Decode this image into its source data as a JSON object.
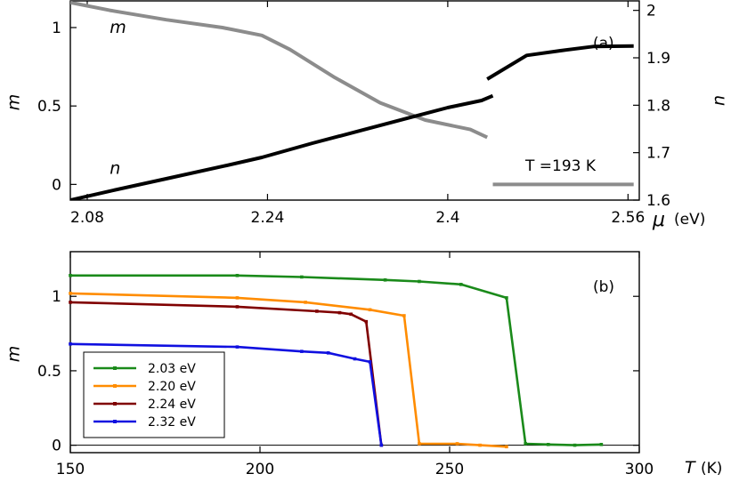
{
  "chart_data": [
    {
      "type": "line",
      "panel_label": "(a)",
      "annotation": "T =193 K",
      "xlabel": "μ (eV)",
      "xlabel_symbol": "μ",
      "xlabel_unit": "(eV)",
      "ylabel_left": "m",
      "ylabel_right": "n",
      "xlim": [
        2.065,
        2.57
      ],
      "ylim_left": [
        -0.1,
        1.17
      ],
      "ylim_right": [
        1.6,
        2.02
      ],
      "xticks": [
        2.08,
        2.24,
        2.4,
        2.56
      ],
      "xtick_labels": [
        "2.08",
        "2.24",
        "2.4",
        "2.56"
      ],
      "yticks_left": [
        0,
        0.5,
        1
      ],
      "ytick_labels_left": [
        "0",
        "0.5",
        "1"
      ],
      "yticks_right": [
        1.6,
        1.7,
        1.8,
        1.9,
        2.0
      ],
      "ytick_labels_right": [
        "1.6",
        "1.7",
        "1.8",
        "1.9",
        "2"
      ],
      "curve_labels": [
        {
          "text": "m",
          "x": 2.1,
          "y": 1.0
        },
        {
          "text": "n",
          "x": 2.1,
          "y": 0.1
        }
      ],
      "series": [
        {
          "name": "m",
          "axis": "left",
          "color": "#8c8c8c",
          "segments": [
            [
              [
                2.065,
                1.16
              ],
              [
                2.1,
                1.11
              ],
              [
                2.15,
                1.05
              ],
              [
                2.2,
                1.0
              ],
              [
                2.235,
                0.95
              ],
              [
                2.26,
                0.86
              ],
              [
                2.3,
                0.68
              ],
              [
                2.34,
                0.52
              ],
              [
                2.38,
                0.41
              ],
              [
                2.42,
                0.35
              ],
              [
                2.435,
                0.3
              ]
            ],
            [
              [
                2.44,
                0.0
              ],
              [
                2.565,
                0.0
              ]
            ]
          ]
        },
        {
          "name": "n",
          "axis": "right",
          "color": "#000000",
          "segments": [
            [
              [
                2.065,
                1.6
              ],
              [
                2.1,
                1.619
              ],
              [
                2.15,
                1.645
              ],
              [
                2.2,
                1.671
              ],
              [
                2.235,
                1.69
              ],
              [
                2.28,
                1.72
              ],
              [
                2.32,
                1.745
              ],
              [
                2.36,
                1.77
              ],
              [
                2.4,
                1.795
              ],
              [
                2.43,
                1.81
              ],
              [
                2.44,
                1.82
              ]
            ],
            [
              [
                2.435,
                1.855
              ],
              [
                2.47,
                1.905
              ],
              [
                2.5,
                1.915
              ],
              [
                2.53,
                1.924
              ],
              [
                2.565,
                1.925
              ]
            ]
          ]
        }
      ]
    },
    {
      "type": "line",
      "panel_label": "(b)",
      "xlabel": "T (K)",
      "xlabel_symbol": "T",
      "xlabel_unit": "(K)",
      "ylabel": "m",
      "xlim": [
        150,
        300
      ],
      "ylim": [
        -0.05,
        1.3
      ],
      "xticks": [
        150,
        200,
        250,
        300
      ],
      "xtick_labels": [
        "150",
        "200",
        "250",
        "300"
      ],
      "yticks": [
        0,
        0.5,
        1
      ],
      "ytick_labels": [
        "0",
        "0.5",
        "1"
      ],
      "legend_position": "bottom-left",
      "series": [
        {
          "name": "2.03 eV",
          "color": "#1a8a1a",
          "points": [
            [
              150,
              1.14
            ],
            [
              194,
              1.14
            ],
            [
              211,
              1.13
            ],
            [
              233,
              1.11
            ],
            [
              242,
              1.1
            ],
            [
              253,
              1.08
            ],
            [
              265,
              0.99
            ],
            [
              270,
              0.01
            ],
            [
              276,
              0.005
            ],
            [
              283,
              0.0
            ],
            [
              290,
              0.005
            ]
          ]
        },
        {
          "name": "2.20 eV",
          "color": "#ff8c00",
          "points": [
            [
              150,
              1.02
            ],
            [
              194,
              0.99
            ],
            [
              212,
              0.96
            ],
            [
              229,
              0.91
            ],
            [
              238,
              0.87
            ],
            [
              242,
              0.01
            ],
            [
              252,
              0.01
            ],
            [
              258,
              0.0
            ],
            [
              265,
              -0.01
            ]
          ]
        },
        {
          "name": "2.24 eV",
          "color": "#800000",
          "points": [
            [
              150,
              0.96
            ],
            [
              194,
              0.93
            ],
            [
              215,
              0.9
            ],
            [
              221,
              0.89
            ],
            [
              224,
              0.88
            ],
            [
              228,
              0.83
            ],
            [
              232,
              0.0
            ]
          ]
        },
        {
          "name": "2.32 eV",
          "color": "#1010e0",
          "points": [
            [
              150,
              0.68
            ],
            [
              194,
              0.66
            ],
            [
              211,
              0.63
            ],
            [
              218,
              0.62
            ],
            [
              225,
              0.58
            ],
            [
              229,
              0.56
            ],
            [
              232,
              0.0
            ]
          ]
        }
      ]
    }
  ]
}
